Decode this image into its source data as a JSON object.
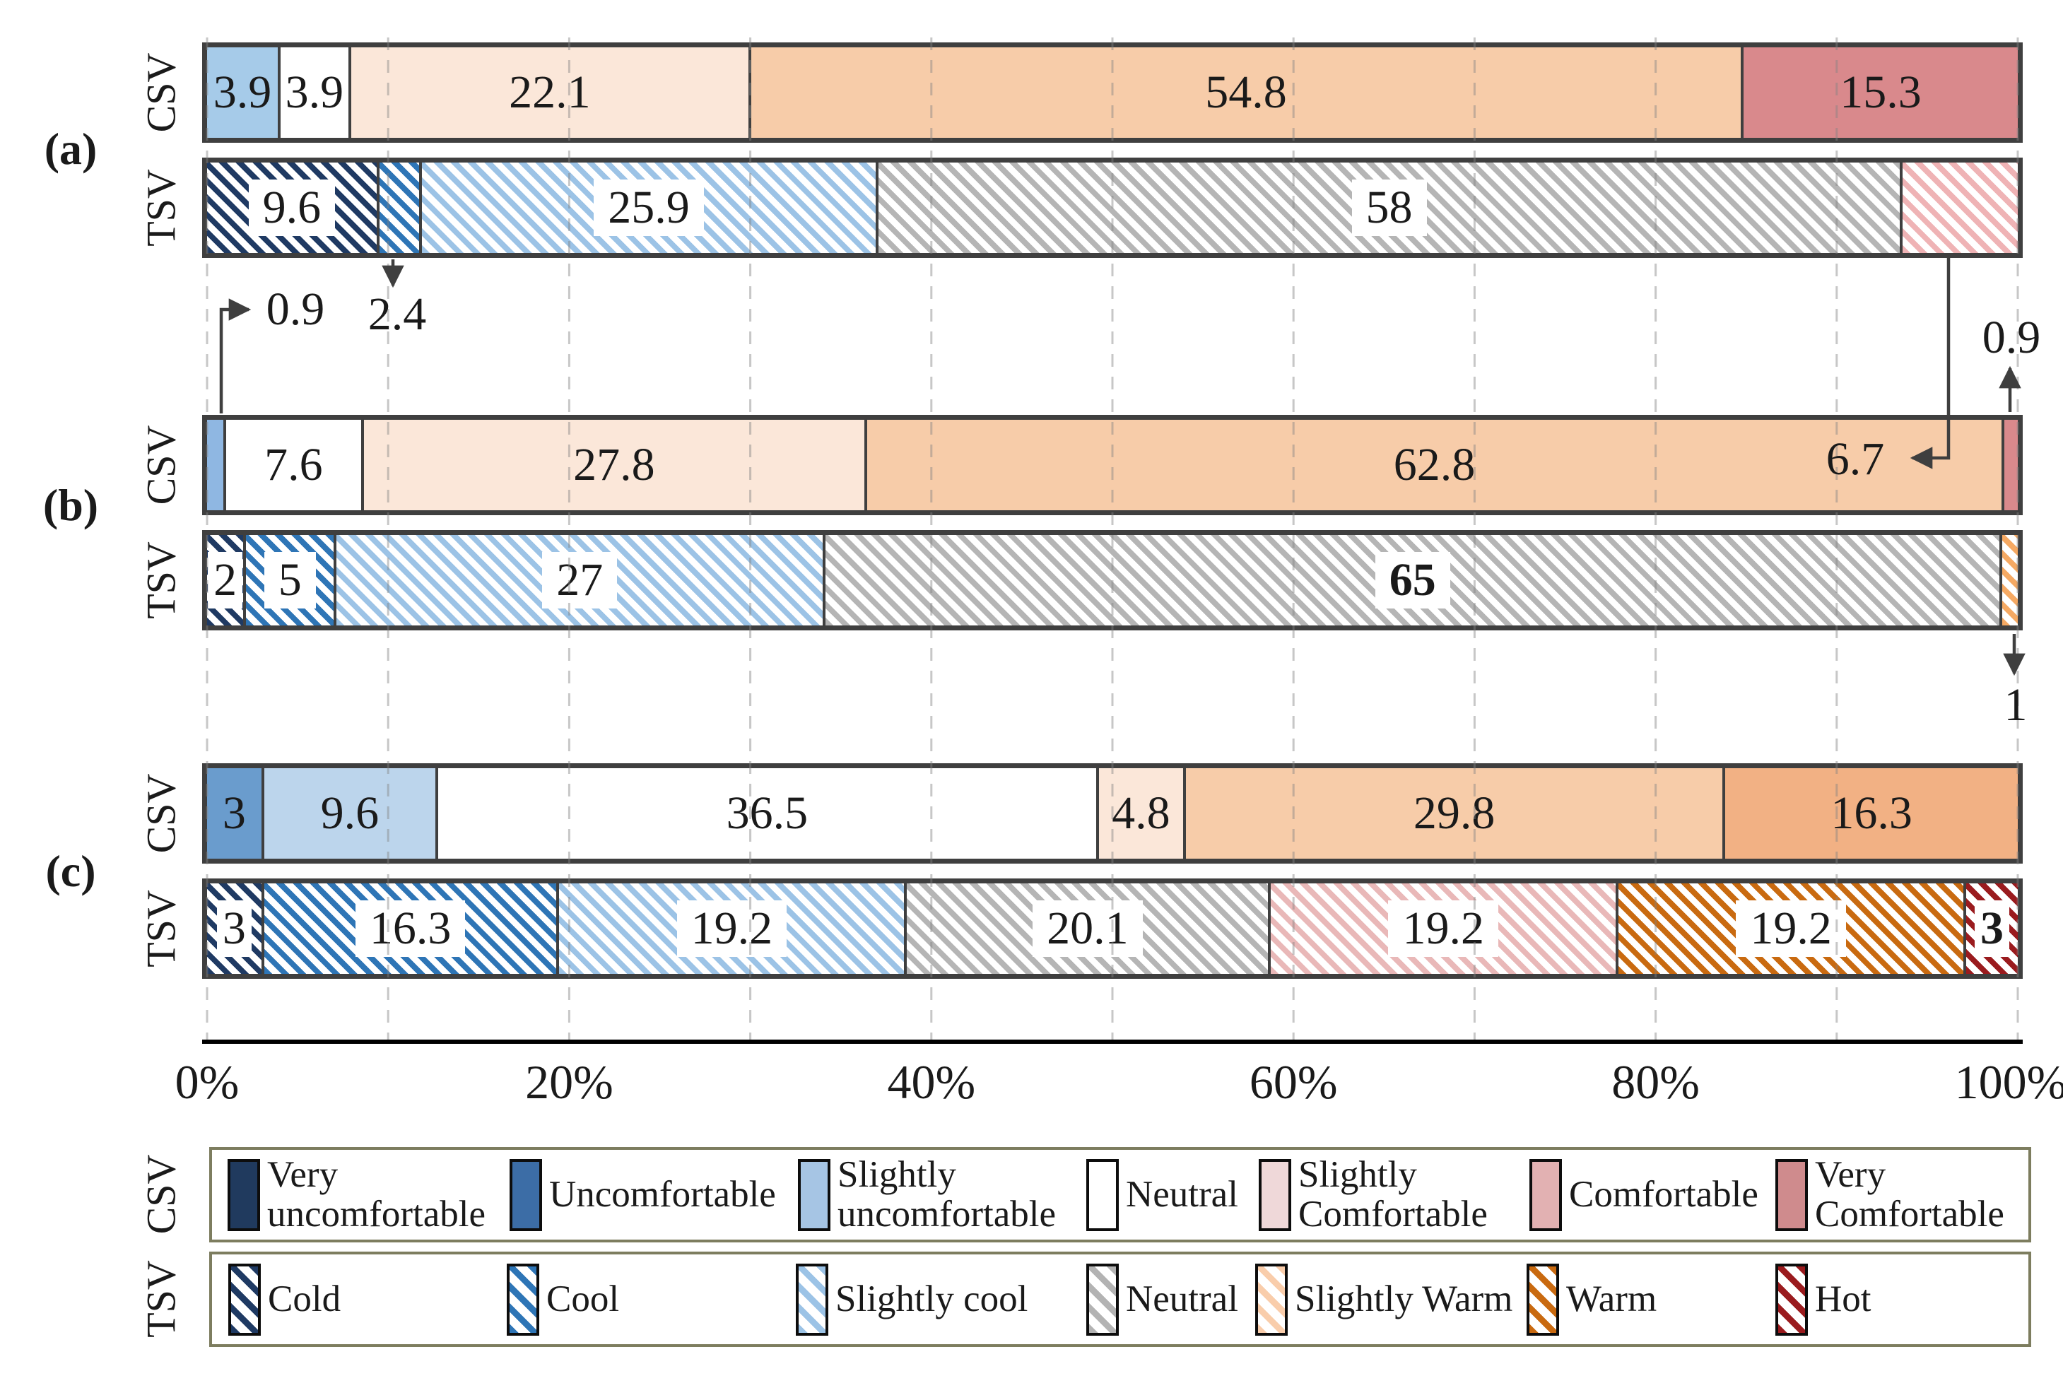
{
  "chart_data": {
    "type": "bar",
    "variant": "horizontal-stacked-percentage",
    "x_axis": {
      "tick_labels": [
        "0%",
        "20%",
        "40%",
        "60%",
        "80%",
        "100%"
      ],
      "range": [
        0,
        100
      ],
      "gridline_step_pct": 10,
      "grid": "dashed"
    },
    "panels": [
      {
        "id": "a",
        "label": "(a)",
        "bars": [
          {
            "row_label": "CSV",
            "segments": [
              {
                "category": "Slightly uncomfortable",
                "value": 3.9,
                "text": "3.9",
                "color": "#a6cbe9",
                "hatch": false,
                "label": "inside"
              },
              {
                "category": "Neutral",
                "value": 3.9,
                "text": "3.9",
                "color": "#ffffff",
                "hatch": false,
                "label": "inside"
              },
              {
                "category": "Slightly Comfortable",
                "value": 22.1,
                "text": "22.1",
                "color": "#fbe7d9",
                "hatch": false,
                "label": "inside"
              },
              {
                "category": "Comfortable",
                "value": 54.8,
                "text": "54.8",
                "color": "#f7cca9",
                "hatch": false,
                "label": "inside"
              },
              {
                "category": "Very Comfortable",
                "value": 15.3,
                "text": "15.3",
                "color": "#d9898c",
                "hatch": false,
                "label": "inside"
              }
            ]
          },
          {
            "row_label": "TSV",
            "segments": [
              {
                "category": "Cold",
                "value": 9.6,
                "text": "9.6",
                "color": "#1f3a63",
                "hatch": true,
                "label": "boxed"
              },
              {
                "category": "Cool",
                "value": 2.4,
                "text": "2.4",
                "color": "#2e75b6",
                "hatch": true,
                "label": "none"
              },
              {
                "category": "Slightly cool",
                "value": 25.9,
                "text": "25.9",
                "color": "#9cc3e6",
                "hatch": true,
                "label": "boxed"
              },
              {
                "category": "Neutral",
                "value": 58,
                "text": "58",
                "color": "#b5b5b5",
                "hatch": true,
                "label": "boxed"
              },
              {
                "category": "Slightly Warm",
                "value": 6.7,
                "text": "6.7",
                "color": "#efb3b5",
                "hatch": true,
                "label": "none"
              }
            ]
          }
        ]
      },
      {
        "id": "b",
        "label": "(b)",
        "bars": [
          {
            "row_label": "CSV",
            "segments": [
              {
                "category": "Slightly uncomfortable",
                "value": 0.9,
                "text": "0.9",
                "color": "#8fb7e2",
                "hatch": false,
                "label": "none"
              },
              {
                "category": "Neutral",
                "value": 7.6,
                "text": "7.6",
                "color": "#ffffff",
                "hatch": false,
                "label": "inside"
              },
              {
                "category": "Slightly Comfortable",
                "value": 27.8,
                "text": "27.8",
                "color": "#fbe7d9",
                "hatch": false,
                "label": "inside"
              },
              {
                "category": "Comfortable",
                "value": 62.8,
                "text": "62.8",
                "color": "#f7cca9",
                "hatch": false,
                "label": "inside"
              },
              {
                "category": "Very Comfortable",
                "value": 0.9,
                "text": "0.9",
                "color": "#d9898c",
                "hatch": false,
                "label": "none"
              }
            ]
          },
          {
            "row_label": "TSV",
            "segments": [
              {
                "category": "Cold",
                "value": 2,
                "text": "2",
                "color": "#1f3a63",
                "hatch": true,
                "label": "boxed"
              },
              {
                "category": "Cool",
                "value": 5,
                "text": "5",
                "color": "#2e75b6",
                "hatch": true,
                "label": "boxed"
              },
              {
                "category": "Slightly cool",
                "value": 27,
                "text": "27",
                "color": "#9cc3e6",
                "hatch": true,
                "label": "boxed"
              },
              {
                "category": "Neutral",
                "value": 65,
                "text": "65",
                "color": "#b5b5b5",
                "hatch": true,
                "label": "boxed",
                "bold": true
              },
              {
                "category": "Slightly Warm",
                "value": 1,
                "text": "1",
                "color": "#f5a963",
                "hatch": true,
                "label": "none"
              }
            ]
          }
        ]
      },
      {
        "id": "c",
        "label": "(c)",
        "bars": [
          {
            "row_label": "CSV",
            "segments": [
              {
                "category": "Uncomfortable",
                "value": 3,
                "text": "3",
                "color": "#6a9ccd",
                "hatch": false,
                "label": "inside"
              },
              {
                "category": "Slightly uncomfortable",
                "value": 9.6,
                "text": "9.6",
                "color": "#bcd5ec",
                "hatch": false,
                "label": "inside"
              },
              {
                "category": "Neutral",
                "value": 36.5,
                "text": "36.5",
                "color": "#ffffff",
                "hatch": false,
                "label": "inside"
              },
              {
                "category": "Slightly Comfortable",
                "value": 4.8,
                "text": "4.8",
                "color": "#fbe7d9",
                "hatch": false,
                "label": "inside"
              },
              {
                "category": "Comfortable",
                "value": 29.8,
                "text": "29.8",
                "color": "#f7cca9",
                "hatch": false,
                "label": "inside"
              },
              {
                "category": "Very Comfortable",
                "value": 16.3,
                "text": "16.3",
                "color": "#f2b184",
                "hatch": false,
                "label": "inside"
              }
            ]
          },
          {
            "row_label": "TSV",
            "segments": [
              {
                "category": "Cold",
                "value": 3,
                "text": "3",
                "color": "#1f3a63",
                "hatch": true,
                "label": "boxed"
              },
              {
                "category": "Cool",
                "value": 16.3,
                "text": "16.3",
                "color": "#2e75b6",
                "hatch": true,
                "label": "boxed"
              },
              {
                "category": "Slightly cool",
                "value": 19.2,
                "text": "19.2",
                "color": "#9cc3e6",
                "hatch": true,
                "label": "boxed"
              },
              {
                "category": "Neutral",
                "value": 20.1,
                "text": "20.1",
                "color": "#b5b5b5",
                "hatch": true,
                "label": "boxed"
              },
              {
                "category": "Slightly Warm",
                "value": 19.2,
                "text": "19.2",
                "color": "#e9b8b8",
                "hatch": true,
                "label": "boxed"
              },
              {
                "category": "Warm",
                "value": 19.2,
                "text": "19.2",
                "color": "#c96a10",
                "hatch": true,
                "label": "boxed"
              },
              {
                "category": "Hot",
                "value": 3,
                "text": "3",
                "color": "#9a1b1e",
                "hatch": true,
                "label": "boxed",
                "bold": true
              }
            ]
          }
        ]
      }
    ],
    "annotations": [
      {
        "id": "b-csv-first",
        "text": "0.9",
        "target": "(b) CSV Slightly uncomfortable"
      },
      {
        "id": "a-tsv-cool",
        "text": "2.4",
        "target": "(a) TSV Cool"
      },
      {
        "id": "a-tsv-warm",
        "text": "6.7",
        "target": "(a) TSV Slightly Warm"
      },
      {
        "id": "b-csv-last",
        "text": "0.9",
        "target": "(b) CSV Very Comfortable"
      },
      {
        "id": "b-tsv-last",
        "text": "1",
        "target": "(b) TSV Slightly Warm"
      }
    ],
    "legend": {
      "rows": [
        {
          "row_label": "CSV",
          "items": [
            {
              "label_lines": [
                "Very",
                "uncomfortable"
              ],
              "color": "#203a5e",
              "hatch": false
            },
            {
              "label_lines": [
                "Uncomfortable"
              ],
              "color": "#3c6da6",
              "hatch": false
            },
            {
              "label_lines": [
                "Slightly",
                "uncomfortable"
              ],
              "color": "#a6c5e4",
              "hatch": false
            },
            {
              "label_lines": [
                "Neutral"
              ],
              "color": "#ffffff",
              "hatch": false
            },
            {
              "label_lines": [
                "Slightly",
                "Comfortable"
              ],
              "color": "#efd8d9",
              "hatch": false
            },
            {
              "label_lines": [
                "Comfortable"
              ],
              "color": "#e2b1b2",
              "hatch": false
            },
            {
              "label_lines": [
                "Very",
                "Comfortable"
              ],
              "color": "#cf8b8d",
              "hatch": false
            }
          ]
        },
        {
          "row_label": "TSV",
          "items": [
            {
              "label_lines": [
                "Cold"
              ],
              "color": "#1f3a63",
              "hatch": true
            },
            {
              "label_lines": [
                "Cool"
              ],
              "color": "#2e75b6",
              "hatch": true
            },
            {
              "label_lines": [
                "Slightly cool"
              ],
              "color": "#9cc3e6",
              "hatch": true
            },
            {
              "label_lines": [
                "Neutral"
              ],
              "color": "#b3b3b3",
              "hatch": true
            },
            {
              "label_lines": [
                "Slightly Warm"
              ],
              "color": "#f9cdab",
              "hatch": true
            },
            {
              "label_lines": [
                "Warm"
              ],
              "color": "#c96a10",
              "hatch": true
            },
            {
              "label_lines": [
                "Hot"
              ],
              "color": "#9a1b1e",
              "hatch": true
            }
          ]
        }
      ]
    }
  }
}
